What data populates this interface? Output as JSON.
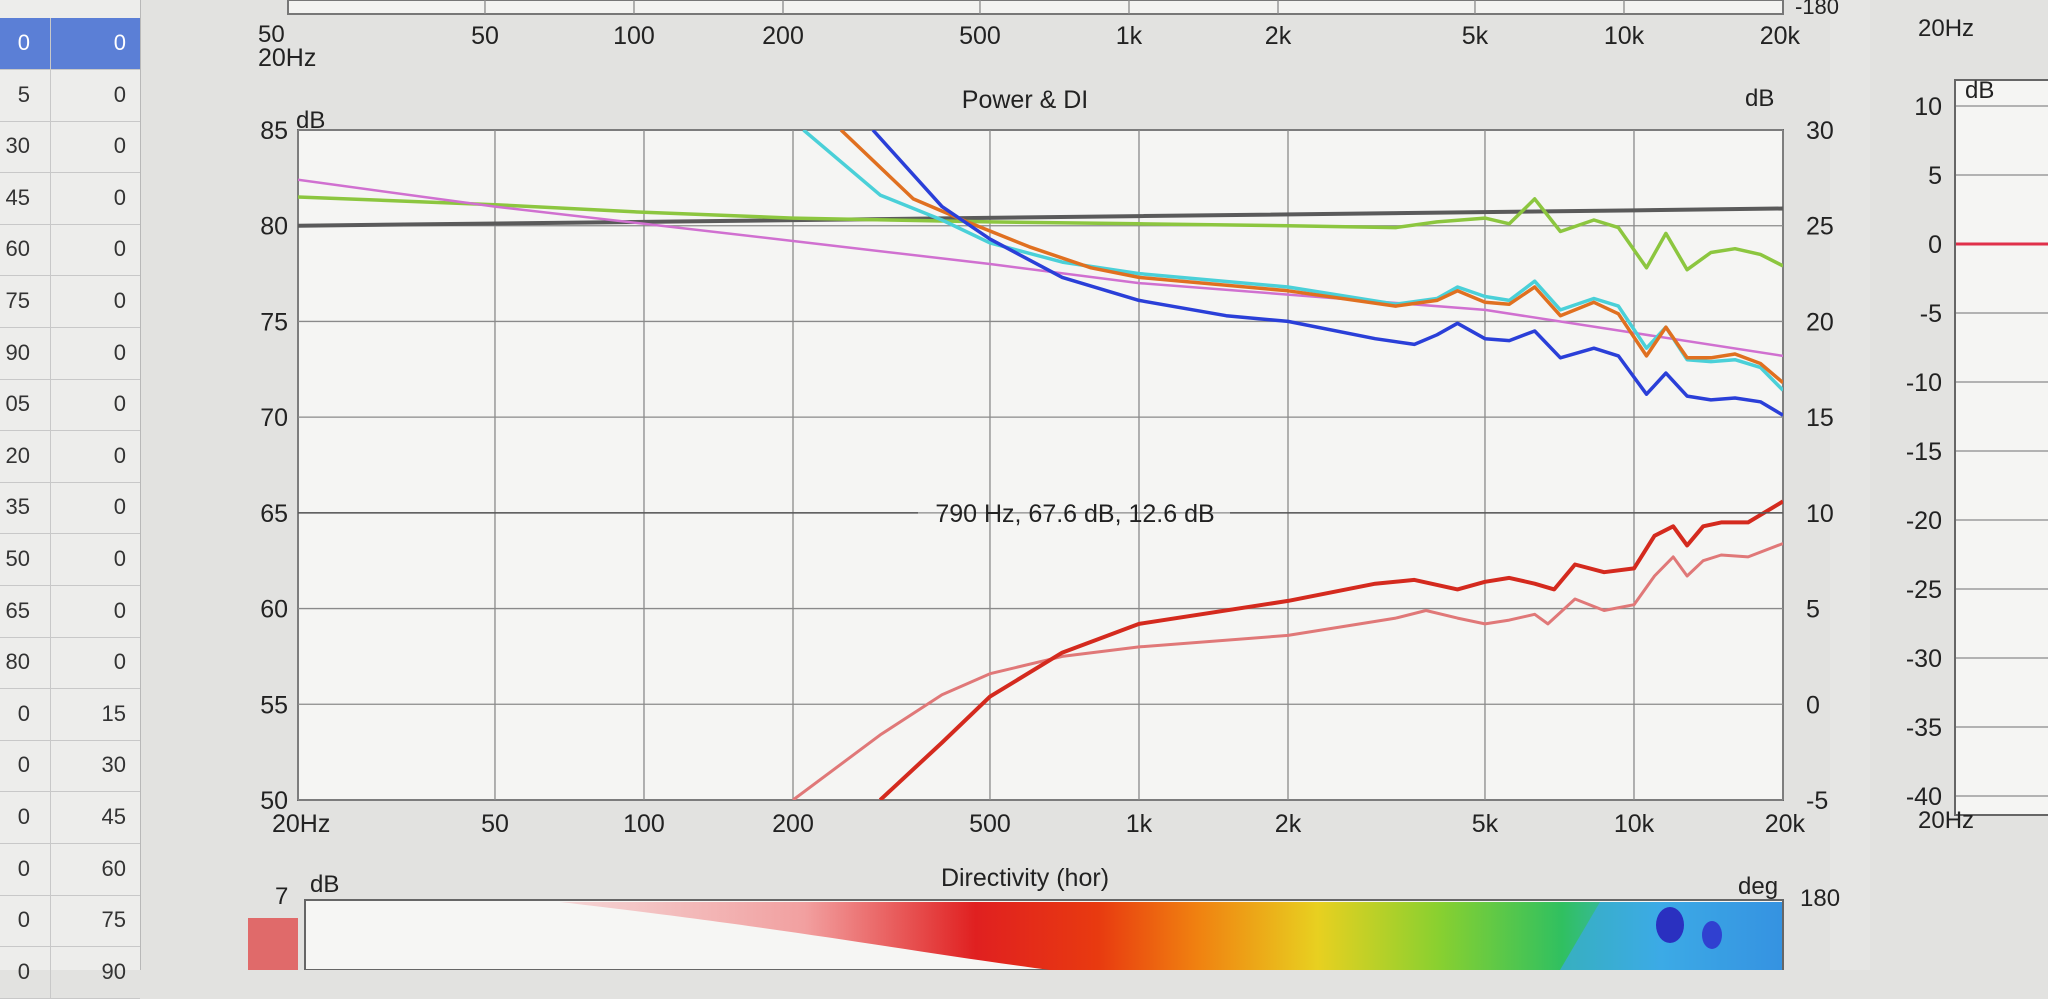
{
  "left_table": {
    "rows": [
      {
        "a": "0",
        "b": "0"
      },
      {
        "a": "5",
        "b": "0"
      },
      {
        "a": "30",
        "b": "0"
      },
      {
        "a": "45",
        "b": "0"
      },
      {
        "a": "60",
        "b": "0"
      },
      {
        "a": "75",
        "b": "0"
      },
      {
        "a": "90",
        "b": "0"
      },
      {
        "a": "05",
        "b": "0"
      },
      {
        "a": "20",
        "b": "0"
      },
      {
        "a": "35",
        "b": "0"
      },
      {
        "a": "50",
        "b": "0"
      },
      {
        "a": "65",
        "b": "0"
      },
      {
        "a": "80",
        "b": "0"
      },
      {
        "a": "0",
        "b": "15"
      },
      {
        "a": "0",
        "b": "30"
      },
      {
        "a": "0",
        "b": "45"
      },
      {
        "a": "0",
        "b": "60"
      },
      {
        "a": "0",
        "b": "75"
      },
      {
        "a": "0",
        "b": "90"
      }
    ]
  },
  "top_strip": {
    "ylabel_bottom": "50",
    "right_label": "-180",
    "x_ticks": [
      "20Hz",
      "50",
      "100",
      "200",
      "500",
      "1k",
      "2k",
      "5k",
      "10k",
      "20k"
    ]
  },
  "right_panel": {
    "top_label": "20Hz",
    "unit": "dB",
    "ticks": [
      "10",
      "5",
      "0",
      "-5",
      "-10",
      "-15",
      "-20",
      "-25",
      "-30",
      "-35",
      "-40"
    ],
    "x_label": "20Hz",
    "line_color": "#e0304a"
  },
  "directivity": {
    "title": "Directivity (hor)",
    "left_unit": "dB",
    "left_value": "7",
    "right_unit": "deg",
    "right_value": "180"
  },
  "chart_data": {
    "type": "line",
    "title": "Power & DI",
    "xscale": "log",
    "xlim": [
      20,
      20000
    ],
    "ylim": [
      50,
      85
    ],
    "y2lim": [
      -5,
      30
    ],
    "ylabel": "dB",
    "y2label": "dB",
    "x_ticks": [
      {
        "v": 20,
        "label": "20Hz"
      },
      {
        "v": 50,
        "label": "50"
      },
      {
        "v": 100,
        "label": "100"
      },
      {
        "v": 200,
        "label": "200"
      },
      {
        "v": 500,
        "label": "500"
      },
      {
        "v": 1000,
        "label": "1k"
      },
      {
        "v": 2000,
        "label": "2k"
      },
      {
        "v": 5000,
        "label": "5k"
      },
      {
        "v": 10000,
        "label": "10k"
      },
      {
        "v": 20000,
        "label": "20k"
      }
    ],
    "y_ticks": [
      "85",
      "80",
      "75",
      "70",
      "65",
      "60",
      "55",
      "50"
    ],
    "y2_ticks": [
      "30",
      "25",
      "20",
      "15",
      "10",
      "5",
      "0",
      "-5"
    ],
    "cursor_label": "790 Hz, 67.6 dB, 12.6 dB",
    "cursor_y": 65,
    "grid": true,
    "series": [
      {
        "color": "#5a5a5a",
        "axis": "left",
        "width": 4,
        "points": [
          [
            20,
            80
          ],
          [
            100,
            80.2
          ],
          [
            1000,
            80.5
          ],
          [
            10000,
            80.8
          ],
          [
            20000,
            80.9
          ]
        ]
      },
      {
        "color": "#8cc63f",
        "axis": "left",
        "width": 3.5,
        "points": [
          [
            20,
            81.5
          ],
          [
            50,
            81.1
          ],
          [
            100,
            80.7
          ],
          [
            200,
            80.4
          ],
          [
            500,
            80.2
          ],
          [
            1000,
            80.1
          ],
          [
            2000,
            80.0
          ],
          [
            3300,
            79.9
          ],
          [
            4000,
            80.2
          ],
          [
            5000,
            80.4
          ],
          [
            5600,
            80.1
          ],
          [
            6300,
            81.4
          ],
          [
            7100,
            79.7
          ],
          [
            8300,
            80.3
          ],
          [
            9300,
            79.9
          ],
          [
            10600,
            77.8
          ],
          [
            11600,
            79.6
          ],
          [
            12800,
            77.7
          ],
          [
            14300,
            78.6
          ],
          [
            16000,
            78.8
          ],
          [
            18000,
            78.5
          ],
          [
            20000,
            77.9
          ]
        ]
      },
      {
        "color": "#d070d0",
        "axis": "left",
        "width": 2.5,
        "points": [
          [
            20,
            82.4
          ],
          [
            50,
            81.0
          ],
          [
            100,
            80.1
          ],
          [
            200,
            79.2
          ],
          [
            500,
            78.0
          ],
          [
            1000,
            77.0
          ],
          [
            2000,
            76.4
          ],
          [
            5000,
            75.6
          ],
          [
            10000,
            74.4
          ],
          [
            20000,
            73.2
          ]
        ]
      },
      {
        "color": "#4ad0d8",
        "axis": "left",
        "width": 3.5,
        "points": [
          [
            210,
            85
          ],
          [
            300,
            81.6
          ],
          [
            400,
            80.3
          ],
          [
            500,
            79.1
          ],
          [
            700,
            78.1
          ],
          [
            1000,
            77.5
          ],
          [
            2000,
            76.8
          ],
          [
            3300,
            75.9
          ],
          [
            4000,
            76.2
          ],
          [
            4400,
            76.8
          ],
          [
            5000,
            76.3
          ],
          [
            5600,
            76.1
          ],
          [
            6300,
            77.1
          ],
          [
            7100,
            75.6
          ],
          [
            8300,
            76.2
          ],
          [
            9300,
            75.8
          ],
          [
            10600,
            73.6
          ],
          [
            11600,
            74.7
          ],
          [
            12800,
            73.0
          ],
          [
            14300,
            72.9
          ],
          [
            16000,
            73.0
          ],
          [
            18000,
            72.6
          ],
          [
            20000,
            71.4
          ]
        ]
      },
      {
        "color": "#e07020",
        "axis": "left",
        "width": 3.5,
        "points": [
          [
            250,
            85
          ],
          [
            350,
            81.4
          ],
          [
            450,
            80.2
          ],
          [
            600,
            78.9
          ],
          [
            800,
            77.8
          ],
          [
            1000,
            77.3
          ],
          [
            2000,
            76.6
          ],
          [
            3300,
            75.8
          ],
          [
            4000,
            76.1
          ],
          [
            4400,
            76.6
          ],
          [
            5000,
            76.0
          ],
          [
            5600,
            75.9
          ],
          [
            6300,
            76.8
          ],
          [
            7100,
            75.3
          ],
          [
            8300,
            76.0
          ],
          [
            9300,
            75.4
          ],
          [
            10600,
            73.2
          ],
          [
            11600,
            74.7
          ],
          [
            12800,
            73.1
          ],
          [
            14300,
            73.1
          ],
          [
            16000,
            73.3
          ],
          [
            18000,
            72.8
          ],
          [
            20000,
            71.8
          ]
        ]
      },
      {
        "color": "#2a3fd8",
        "axis": "left",
        "width": 3.5,
        "points": [
          [
            290,
            85
          ],
          [
            400,
            81.0
          ],
          [
            500,
            79.3
          ],
          [
            700,
            77.3
          ],
          [
            1000,
            76.1
          ],
          [
            1500,
            75.3
          ],
          [
            2000,
            75.0
          ],
          [
            3000,
            74.1
          ],
          [
            3600,
            73.8
          ],
          [
            4000,
            74.3
          ],
          [
            4400,
            74.9
          ],
          [
            5000,
            74.1
          ],
          [
            5600,
            74.0
          ],
          [
            6300,
            74.5
          ],
          [
            7100,
            73.1
          ],
          [
            8300,
            73.6
          ],
          [
            9300,
            73.2
          ],
          [
            10600,
            71.2
          ],
          [
            11600,
            72.3
          ],
          [
            12800,
            71.1
          ],
          [
            14300,
            70.9
          ],
          [
            16000,
            71.0
          ],
          [
            18000,
            70.8
          ],
          [
            20000,
            70.1
          ]
        ]
      },
      {
        "color": "#e07878",
        "axis": "right",
        "width": 3,
        "points": [
          [
            200,
            -5
          ],
          [
            300,
            -1.6
          ],
          [
            400,
            0.5
          ],
          [
            500,
            1.6
          ],
          [
            700,
            2.5
          ],
          [
            1000,
            3.0
          ],
          [
            2000,
            3.6
          ],
          [
            3300,
            4.5
          ],
          [
            3800,
            4.9
          ],
          [
            4400,
            4.5
          ],
          [
            5000,
            4.2
          ],
          [
            5600,
            4.4
          ],
          [
            6300,
            4.7
          ],
          [
            6700,
            4.2
          ],
          [
            7600,
            5.5
          ],
          [
            8700,
            4.9
          ],
          [
            10000,
            5.2
          ],
          [
            11000,
            6.7
          ],
          [
            12000,
            7.7
          ],
          [
            12800,
            6.7
          ],
          [
            13800,
            7.5
          ],
          [
            15000,
            7.8
          ],
          [
            17000,
            7.7
          ],
          [
            20000,
            8.4
          ]
        ]
      },
      {
        "color": "#d42a1e",
        "axis": "right",
        "width": 4,
        "points": [
          [
            300,
            -5
          ],
          [
            400,
            -2.0
          ],
          [
            500,
            0.4
          ],
          [
            700,
            2.7
          ],
          [
            1000,
            4.2
          ],
          [
            2000,
            5.4
          ],
          [
            3000,
            6.3
          ],
          [
            3600,
            6.5
          ],
          [
            4400,
            6.0
          ],
          [
            5000,
            6.4
          ],
          [
            5600,
            6.6
          ],
          [
            6300,
            6.3
          ],
          [
            6900,
            6.0
          ],
          [
            7600,
            7.3
          ],
          [
            8700,
            6.9
          ],
          [
            10000,
            7.1
          ],
          [
            11000,
            8.8
          ],
          [
            12000,
            9.3
          ],
          [
            12800,
            8.3
          ],
          [
            13800,
            9.3
          ],
          [
            15000,
            9.5
          ],
          [
            17000,
            9.5
          ],
          [
            20000,
            10.6
          ]
        ]
      }
    ]
  }
}
